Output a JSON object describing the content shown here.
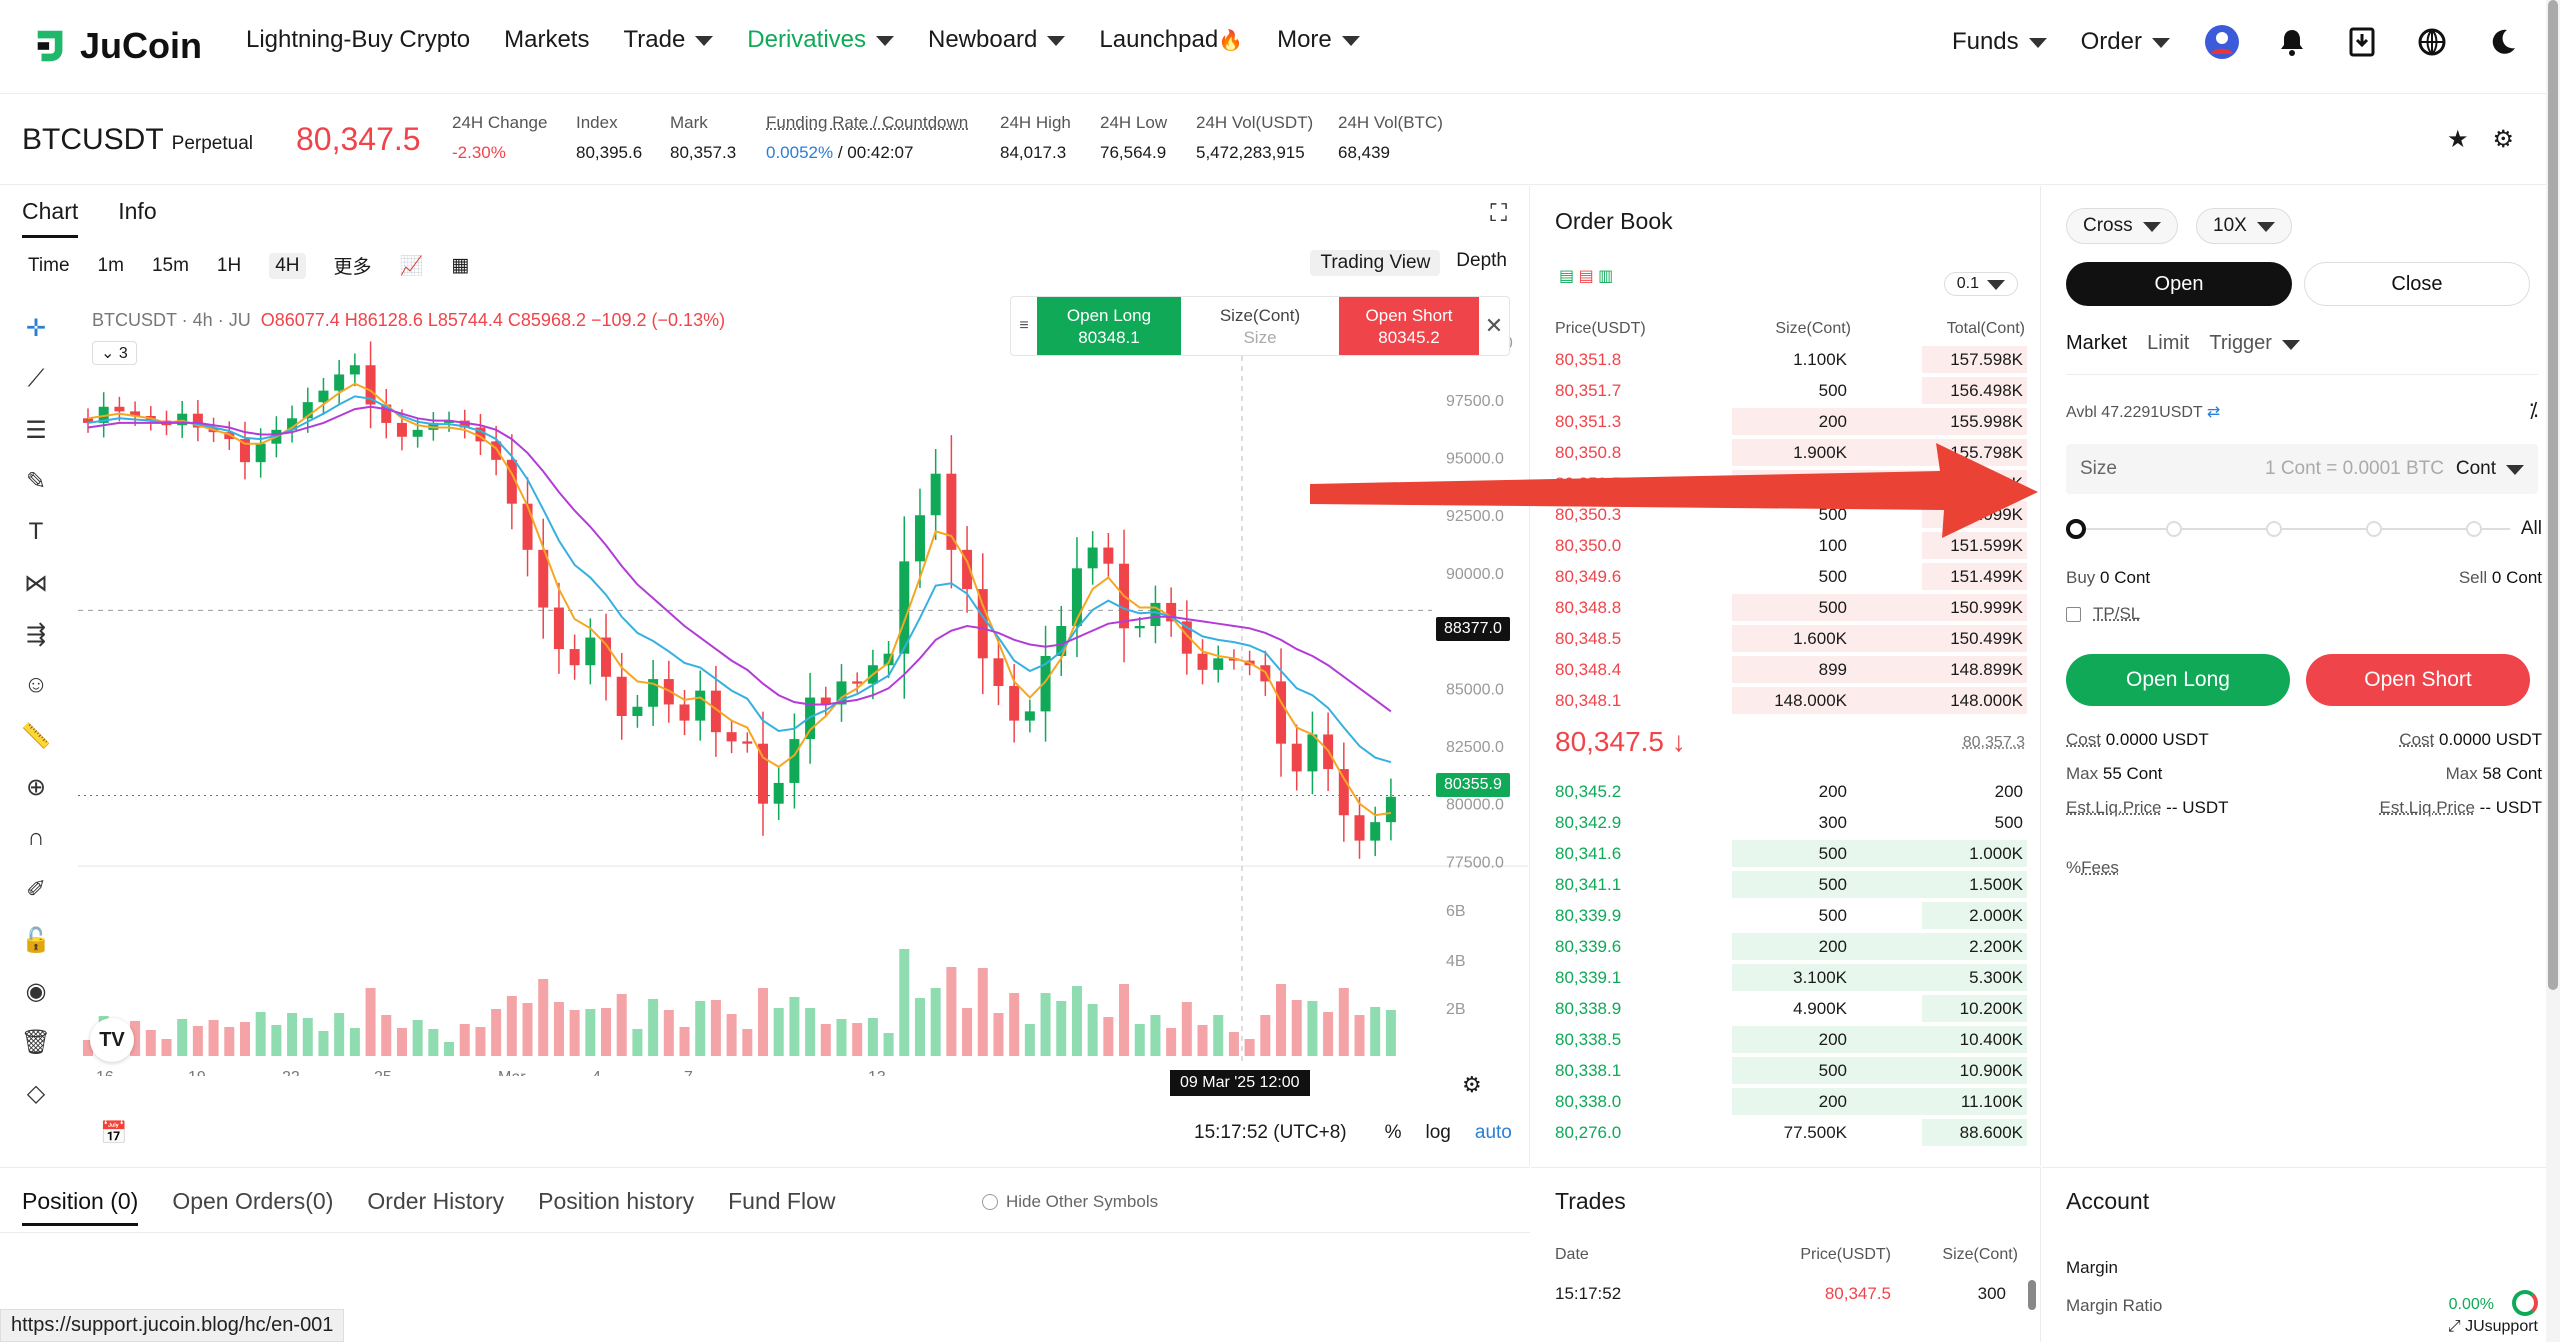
{
  "nav": {
    "logo": "JuCoin",
    "items": [
      {
        "label": "Lightning-Buy Crypto",
        "caret": false,
        "active": false
      },
      {
        "label": "Markets",
        "caret": false,
        "active": false
      },
      {
        "label": "Trade",
        "caret": true,
        "active": false
      },
      {
        "label": "Derivatives",
        "caret": true,
        "active": true
      },
      {
        "label": "Newboard",
        "caret": true,
        "active": false
      },
      {
        "label": "Launchpad",
        "caret": false,
        "active": false
      },
      {
        "label": "More",
        "caret": true,
        "active": false
      }
    ],
    "right": [
      {
        "label": "Funds"
      },
      {
        "label": "Order"
      }
    ],
    "accent": "#0fa958"
  },
  "ticker": {
    "symbol": "BTCUSDT",
    "type": "Perpetual",
    "last": "80,347.5",
    "stats": [
      {
        "label": "24H Change",
        "value": "-2.30%",
        "value2": ""
      },
      {
        "label": "Index",
        "value": "80,395.6",
        "value2": ""
      },
      {
        "label": "Mark",
        "value": "80,357.3",
        "value2": ""
      },
      {
        "label": "Funding Rate / Countdown",
        "value": "0.0052%",
        "value2": " / 00:42:07"
      },
      {
        "label": "24H High",
        "value": "84,017.3",
        "value2": ""
      },
      {
        "label": "24H Low",
        "value": "76,564.9",
        "value2": ""
      },
      {
        "label": "24H Vol(USDT)",
        "value": "5,472,283,915",
        "value2": ""
      },
      {
        "label": "24H Vol(BTC)",
        "value": "68,439",
        "value2": ""
      }
    ]
  },
  "chart": {
    "tabs": [
      "Chart",
      "Info"
    ],
    "timeframes": [
      "Time",
      "1m",
      "15m",
      "1H",
      "4H",
      "更多"
    ],
    "selected_tf": "4H",
    "views": [
      "Trading View",
      "Depth"
    ],
    "legend_sym": "BTCUSDT · 4h · JU",
    "legend_ohlc": "O86077.4 H86128.6 L85744.4 C85968.2 −109.2 (−0.13%)",
    "indicator_count": "3",
    "quick_long": "Open Long",
    "quick_long_px": "80348.1",
    "quick_size": "Size(Cont)",
    "quick_size_ph": "Size",
    "quick_short": "Open Short",
    "quick_short_px": "80345.2",
    "crosshair_price": "88377.0",
    "last_price_tag": "80355.9",
    "crosshair_date": "09 Mar '25   12:00",
    "clock": "15:17:52 (UTC+8)",
    "scale_btns": [
      "%",
      "log",
      "auto"
    ],
    "tv_logo": "TV"
  },
  "chart_data": {
    "type": "candlestick",
    "title": "",
    "y_ticks": [
      100000,
      97500,
      95000,
      92500,
      90000,
      87500,
      85000,
      82500,
      80000,
      77500
    ],
    "y_tick_labels": [
      "100000.0",
      "97500.0",
      "95000.0",
      "92500.0",
      "90000.0",
      "87500.0",
      "85000.0",
      "82500.0",
      "80000.0",
      "77500.0"
    ],
    "vol_ticks": [
      "6B",
      "4B",
      "2B"
    ],
    "x_ticks": [
      "16",
      "19",
      "22",
      "25",
      "Mar",
      "4",
      "7",
      "13"
    ],
    "ylim": [
      76000,
      102000
    ],
    "close_series": [
      96500,
      97200,
      97000,
      96800,
      96600,
      96400,
      96900,
      96300,
      96100,
      95800,
      94800,
      95600,
      96200,
      96700,
      97400,
      97900,
      98600,
      99000,
      97300,
      96500,
      95900,
      96200,
      96500,
      96600,
      96300,
      95700,
      94900,
      93000,
      91000,
      88500,
      86700,
      86000,
      87200,
      85500,
      83800,
      84200,
      85400,
      84300,
      83600,
      84900,
      83100,
      82700,
      82600,
      80000,
      80900,
      82800,
      84600,
      84300,
      85300,
      85200,
      86000,
      86500,
      90500,
      92500,
      94300,
      91000,
      89300,
      86300,
      85100,
      83600,
      84000,
      86400,
      87700,
      90200,
      91100,
      90400,
      87600,
      87700,
      88700,
      87900,
      86500,
      85800,
      86300,
      86200,
      86000,
      85300,
      82600,
      81400,
      83000,
      81500,
      79500,
      78400,
      79200,
      80300
    ],
    "ma_fast": [
      96700,
      96800,
      96900,
      96800,
      96700,
      96500,
      96600,
      96400,
      96200,
      96000,
      95600,
      95600,
      95900,
      96300,
      96800,
      97300,
      97800,
      98200,
      97900,
      97300,
      96700,
      96400,
      96300,
      96300,
      96200,
      95900,
      95400,
      94300,
      92900,
      91100,
      89300,
      88000,
      87600,
      86900,
      85900,
      85300,
      85200,
      84900,
      84500,
      84600,
      84100,
      83600,
      83300,
      82000,
      81600,
      82100,
      83200,
      83800,
      84600,
      85000,
      85600,
      86100,
      87900,
      89800,
      91800,
      91600,
      90500,
      88600,
      87000,
      85300,
      84600,
      85300,
      86300,
      88000,
      89300,
      89800,
      89000,
      88500,
      88500,
      88100,
      87300,
      86600,
      86400,
      86300,
      86100,
      85700,
      84400,
      83300,
      83000,
      82300,
      81100,
      80000,
      79500,
      79600
    ],
    "ma_slow": [
      96300,
      96400,
      96500,
      96500,
      96500,
      96500,
      96500,
      96500,
      96400,
      96300,
      96100,
      96000,
      96000,
      96100,
      96300,
      96500,
      96800,
      97100,
      97200,
      97100,
      96900,
      96700,
      96600,
      96600,
      96500,
      96400,
      96200,
      95800,
      95200,
      94400,
      93500,
      92700,
      92000,
      91200,
      90300,
      89500,
      88900,
      88300,
      87700,
      87200,
      86700,
      86200,
      85800,
      85200,
      84700,
      84400,
      84300,
      84300,
      84400,
      84500,
      84700,
      85000,
      85600,
      86300,
      87100,
      87500,
      87700,
      87600,
      87400,
      87100,
      86900,
      86800,
      86900,
      87200,
      87500,
      87800,
      87900,
      88000,
      88100,
      88100,
      88000,
      87900,
      87800,
      87700,
      87600,
      87400,
      87100,
      86700,
      86400,
      86000,
      85500,
      85000,
      84500,
      84000
    ]
  },
  "orderbook": {
    "title": "Order Book",
    "precision": "0.1",
    "headers": [
      "Price(USDT)",
      "Size(Cont)",
      "Total(Cont)"
    ],
    "asks": [
      {
        "p": "80,351.8",
        "s": "1.100K",
        "t": "157.598K",
        "d": 0.22
      },
      {
        "p": "80,351.7",
        "s": "500",
        "t": "156.498K",
        "d": 0.22
      },
      {
        "p": "80,351.3",
        "s": "200",
        "t": "155.998K",
        "d": 0.62
      },
      {
        "p": "80,350.8",
        "s": "1.900K",
        "t": "155.798K",
        "d": 0.62
      },
      {
        "p": "80,350.5",
        "s": "2.200K",
        "t": "153.899K",
        "d": 0.62
      },
      {
        "p": "80,350.3",
        "s": "500",
        "t": "152.099K",
        "d": 0.22
      },
      {
        "p": "80,350.0",
        "s": "100",
        "t": "151.599K",
        "d": 0.22
      },
      {
        "p": "80,349.6",
        "s": "500",
        "t": "151.499K",
        "d": 0.22
      },
      {
        "p": "80,348.8",
        "s": "500",
        "t": "150.999K",
        "d": 0.62
      },
      {
        "p": "80,348.5",
        "s": "1.600K",
        "t": "150.499K",
        "d": 0.62
      },
      {
        "p": "80,348.4",
        "s": "899",
        "t": "148.899K",
        "d": 0.62
      },
      {
        "p": "80,348.1",
        "s": "148.000K",
        "t": "148.000K",
        "d": 0.62
      }
    ],
    "mid_price": "80,347.5 ↓",
    "mark": "80,357.3",
    "bids": [
      {
        "p": "80,345.2",
        "s": "200",
        "t": "200",
        "d": 0
      },
      {
        "p": "80,342.9",
        "s": "300",
        "t": "500",
        "d": 0
      },
      {
        "p": "80,341.6",
        "s": "500",
        "t": "1.000K",
        "d": 0.62
      },
      {
        "p": "80,341.1",
        "s": "500",
        "t": "1.500K",
        "d": 0.62
      },
      {
        "p": "80,339.9",
        "s": "500",
        "t": "2.000K",
        "d": 0.22
      },
      {
        "p": "80,339.6",
        "s": "200",
        "t": "2.200K",
        "d": 0.62
      },
      {
        "p": "80,339.1",
        "s": "3.100K",
        "t": "5.300K",
        "d": 0.62
      },
      {
        "p": "80,338.9",
        "s": "4.900K",
        "t": "10.200K",
        "d": 0.22
      },
      {
        "p": "80,338.5",
        "s": "200",
        "t": "10.400K",
        "d": 0.62
      },
      {
        "p": "80,338.1",
        "s": "500",
        "t": "10.900K",
        "d": 0.62
      },
      {
        "p": "80,338.0",
        "s": "200",
        "t": "11.100K",
        "d": 0.62
      },
      {
        "p": "80,276.0",
        "s": "77.500K",
        "t": "88.600K",
        "d": 0.22
      }
    ]
  },
  "trade": {
    "margin_mode": "Cross",
    "leverage": "10X",
    "open": "Open",
    "close": "Close",
    "types": [
      "Market",
      "Limit",
      "Trigger"
    ],
    "avbl_label": "Avbl",
    "avbl": "47.2291USDT",
    "size_label": "Size",
    "size_hint": "1 Cont = 0.0001 BTC",
    "size_unit": "Cont",
    "all": "All",
    "buy": "Buy",
    "buy_val": "0 Cont",
    "sell": "Sell",
    "sell_val": "0 Cont",
    "tpsl": "TP/SL",
    "long": "Open Long",
    "short": "Open Short",
    "cost_l": "Cost",
    "cost_v": "0.0000  USDT",
    "max_l": "Max",
    "max_long": "55   Cont",
    "max_short": "58   Cont",
    "liq_l": "Est.Liq.Price",
    "liq_v": "--   USDT",
    "fees": "Fees"
  },
  "bottom": {
    "tabs": [
      "Position (0)",
      "Open Orders(0)",
      "Order History",
      "Position history",
      "Fund Flow"
    ],
    "hide_other": "Hide Other Symbols",
    "trades_title": "Trades",
    "trades_headers": [
      "Date",
      "Price(USDT)",
      "Size(Cont)"
    ],
    "trade_row": {
      "d": "15:17:52",
      "p": "80,347.5",
      "s": "300"
    },
    "account_title": "Account",
    "margin": "Margin",
    "margin_ratio": "Margin Ratio",
    "margin_ratio_v": "0.00%",
    "support": "JUsupport",
    "status_url": "https://support.jucoin.blog/hc/en-001"
  },
  "colors": {
    "up": "#0fa958",
    "down": "#f0444b",
    "annotation_arrow": "#ea4335"
  }
}
